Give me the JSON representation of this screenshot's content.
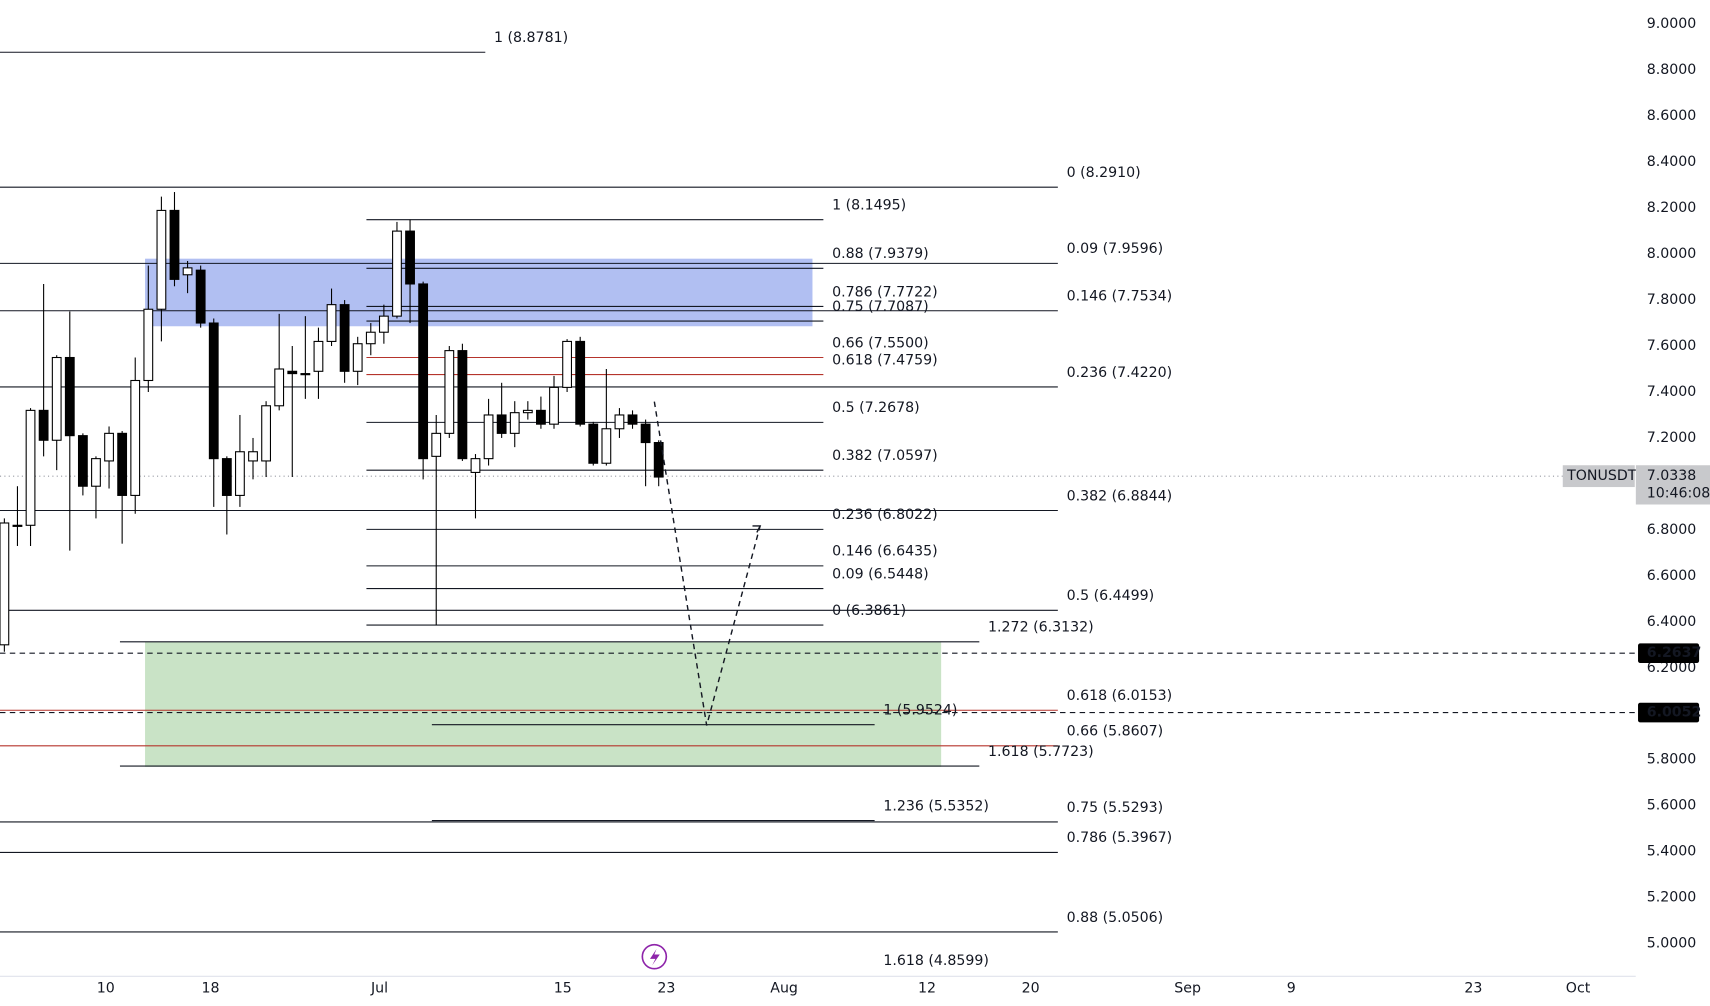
{
  "chart_data": {
    "type": "candlestick",
    "symbol": "TONUSDT",
    "last_price": 7.0338,
    "countdown": "10:46:08",
    "up_color": "#ffffff",
    "down_color": "#000000",
    "ylim": [
      4.8577,
      9.1044
    ],
    "yticks": [
      {
        "value": 5.0,
        "label": "5.0000"
      },
      {
        "value": 5.2,
        "label": "5.2000"
      },
      {
        "value": 5.4,
        "label": "5.4000"
      },
      {
        "value": 5.6,
        "label": "5.6000"
      },
      {
        "value": 5.8,
        "label": "5.8000"
      },
      {
        "value": 6.0,
        "label": "6.0000"
      },
      {
        "value": 6.2,
        "label": "6.2000"
      },
      {
        "value": 6.4,
        "label": "6.4000"
      },
      {
        "value": 6.6,
        "label": "6.6000"
      },
      {
        "value": 6.8,
        "label": "6.8000"
      },
      {
        "value": 7.0,
        "label": "7.0000"
      },
      {
        "value": 7.2,
        "label": "7.2000"
      },
      {
        "value": 7.4,
        "label": "7.4000"
      },
      {
        "value": 7.6,
        "label": "7.6000"
      },
      {
        "value": 7.8,
        "label": "7.8000"
      },
      {
        "value": 8.0,
        "label": "8.0000"
      },
      {
        "value": 8.2,
        "label": "8.2000"
      },
      {
        "value": 8.4,
        "label": "8.4000"
      },
      {
        "value": 8.6,
        "label": "8.6000"
      },
      {
        "value": 8.8,
        "label": "8.8000"
      },
      {
        "value": 9.0,
        "label": "9.0000"
      }
    ],
    "xtick_labels": [
      "10",
      "18",
      "Jul",
      "15",
      "23",
      "Aug",
      "12",
      "20",
      "Sep",
      "9",
      "23",
      "Oct"
    ],
    "open": [
      6.3,
      6.82,
      6.82,
      7.32,
      7.19,
      7.55,
      7.21,
      6.99,
      7.1,
      7.22,
      6.95,
      7.45,
      7.76,
      8.19,
      7.91,
      7.93,
      7.7,
      7.11,
      6.95,
      7.1,
      7.1,
      7.34,
      7.49,
      7.48,
      7.49,
      7.62,
      7.78,
      7.49,
      7.61,
      7.66,
      7.73,
      8.1,
      7.87,
      7.12,
      7.22,
      7.58,
      7.05,
      7.11,
      7.3,
      7.22,
      7.31,
      7.32,
      7.26,
      7.42,
      7.62,
      7.26,
      7.09,
      7.24,
      7.3,
      7.26,
      7.18
    ],
    "high": [
      6.85,
      6.99,
      7.33,
      7.87,
      7.56,
      7.75,
      7.22,
      7.12,
      7.25,
      7.23,
      7.55,
      7.95,
      8.25,
      8.27,
      7.97,
      7.95,
      7.72,
      7.12,
      7.3,
      7.2,
      7.36,
      7.74,
      7.6,
      7.73,
      7.68,
      7.85,
      7.8,
      7.64,
      7.7,
      7.78,
      8.14,
      8.15,
      7.88,
      7.3,
      7.6,
      7.61,
      7.13,
      7.37,
      7.44,
      7.36,
      7.36,
      7.38,
      7.47,
      7.63,
      7.64,
      7.27,
      7.5,
      7.33,
      7.32,
      7.28,
      7.19
    ],
    "low": [
      6.27,
      6.73,
      6.73,
      7.12,
      7.06,
      6.71,
      6.95,
      6.85,
      6.98,
      6.74,
      6.87,
      7.4,
      7.62,
      7.86,
      7.83,
      7.68,
      6.9,
      6.78,
      6.9,
      7.02,
      7.03,
      7.32,
      7.03,
      7.37,
      7.37,
      7.6,
      7.44,
      7.43,
      7.56,
      7.61,
      7.72,
      7.7,
      7.02,
      6.386,
      7.2,
      7.1,
      6.85,
      7.08,
      7.2,
      7.16,
      7.28,
      7.24,
      7.24,
      7.4,
      7.25,
      7.08,
      7.08,
      7.2,
      7.24,
      6.99,
      6.99
    ],
    "close": [
      6.83,
      6.82,
      7.32,
      7.19,
      7.55,
      7.21,
      6.99,
      7.11,
      7.22,
      6.95,
      7.45,
      7.76,
      8.19,
      7.89,
      7.94,
      7.7,
      7.11,
      6.95,
      7.14,
      7.14,
      7.34,
      7.5,
      7.48,
      7.48,
      7.62,
      7.78,
      7.49,
      7.61,
      7.66,
      7.73,
      8.1,
      7.87,
      7.11,
      7.22,
      7.58,
      7.11,
      7.11,
      7.3,
      7.22,
      7.31,
      7.32,
      7.26,
      7.42,
      7.62,
      7.26,
      7.09,
      7.24,
      7.3,
      7.26,
      7.18,
      7.03
    ],
    "zones": [
      {
        "top": 7.98,
        "bottom": 7.686,
        "color": "#a9b8f1"
      },
      {
        "top": 6.314,
        "bottom": 5.769,
        "color": "#c3e0c0"
      }
    ],
    "price_lines": [
      6.2637,
      6.0052
    ],
    "levels": [
      {
        "label": "1 (8.8781)",
        "value": 8.8781,
        "color": "#131722"
      },
      {
        "label": "0 (8.2910)",
        "value": 8.291,
        "color": "#131722"
      },
      {
        "label": "1 (8.1495)",
        "value": 8.1495,
        "color": "#131722"
      },
      {
        "label": "0.88 (7.9379)",
        "value": 7.9379,
        "color": "#131722"
      },
      {
        "label": "0.09 (7.9596)",
        "value": 7.9596,
        "color": "#131722"
      },
      {
        "label": "0.786 (7.7722)",
        "value": 7.7722,
        "color": "#131722"
      },
      {
        "label": "0.75 (7.7087)",
        "value": 7.7087,
        "color": "#131722"
      },
      {
        "label": "0.146 (7.7534)",
        "value": 7.7534,
        "color": "#131722"
      },
      {
        "label": "0.66 (7.5500)",
        "value": 7.55,
        "color": "#b5342c"
      },
      {
        "label": "0.618 (7.4759)",
        "value": 7.4759,
        "color": "#b5342c"
      },
      {
        "label": "0.236 (7.4220)",
        "value": 7.422,
        "color": "#131722"
      },
      {
        "label": "0.5 (7.2678)",
        "value": 7.2678,
        "color": "#131722"
      },
      {
        "label": "0.382 (7.0597)",
        "value": 7.0597,
        "color": "#131722"
      },
      {
        "label": "0.382 (6.8844)",
        "value": 6.8844,
        "color": "#131722"
      },
      {
        "label": "0.236 (6.8022)",
        "value": 6.8022,
        "color": "#131722"
      },
      {
        "label": "0.146 (6.6435)",
        "value": 6.6435,
        "color": "#131722"
      },
      {
        "label": "0.09 (6.5448)",
        "value": 6.5448,
        "color": "#131722"
      },
      {
        "label": "0.5 (6.4499)",
        "value": 6.4499,
        "color": "#131722"
      },
      {
        "label": "0 (6.3861)",
        "value": 6.3861,
        "color": "#131722"
      },
      {
        "label": "1.272 (6.3132)",
        "value": 6.3132,
        "color": "#131722"
      },
      {
        "label": "0.618 (6.0153)",
        "value": 6.0153,
        "color": "#b5342c"
      },
      {
        "label": "1 (5.9524)",
        "value": 5.9524,
        "color": "#131722"
      },
      {
        "label": "0.66 (5.8607)",
        "value": 5.8607,
        "color": "#b5342c"
      },
      {
        "label": "1.618 (5.7723)",
        "value": 5.7723,
        "color": "#131722"
      },
      {
        "label": "1.236 (5.5352)",
        "value": 5.5352,
        "color": "#131722"
      },
      {
        "label": "0.75 (5.5293)",
        "value": 5.5293,
        "color": "#131722"
      },
      {
        "label": "0.786 (5.3967)",
        "value": 5.3967,
        "color": "#131722"
      },
      {
        "label": "0.88 (5.0506)",
        "value": 5.0506,
        "color": "#131722"
      },
      {
        "label": "1.618 (4.8599)",
        "value": 4.8599,
        "color": "#131722"
      }
    ]
  }
}
